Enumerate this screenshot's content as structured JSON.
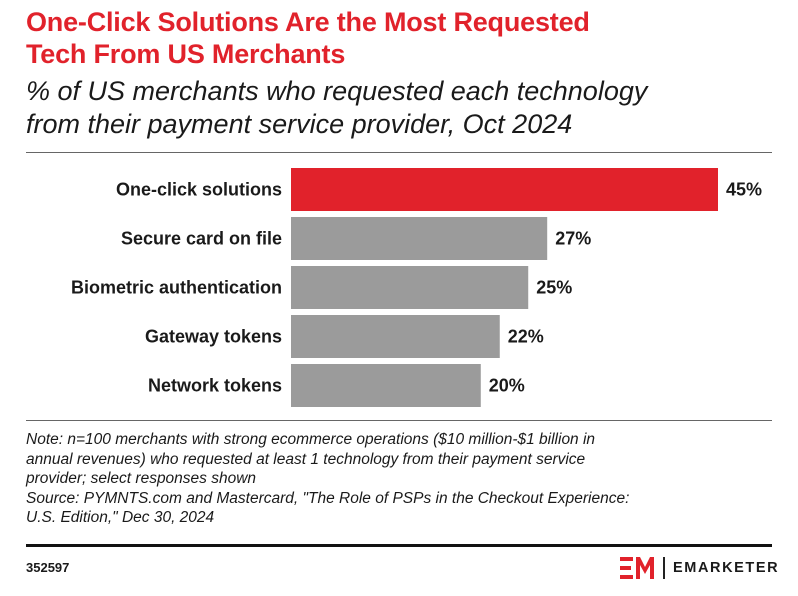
{
  "header": {
    "title_line1": "One-Click Solutions Are the Most Requested",
    "title_line2": "Tech From US Merchants",
    "subtitle_line1": "% of US merchants who requested each technology",
    "subtitle_line2": "from their payment service provider, Oct 2024"
  },
  "chart_data": {
    "type": "bar",
    "orientation": "horizontal",
    "categories": [
      "One-click solutions",
      "Secure card on file",
      "Biometric authentication",
      "Gateway tokens",
      "Network tokens"
    ],
    "values": [
      45,
      27,
      25,
      22,
      20
    ],
    "value_labels": [
      "45%",
      "27%",
      "25%",
      "22%",
      "20%"
    ],
    "highlight_index": 0,
    "colors": {
      "highlight": "#e1222b",
      "default": "#9b9b9b"
    },
    "xlim": [
      0,
      45
    ],
    "grid": false,
    "legend": "none"
  },
  "footer": {
    "note_lines": [
      "Note: n=100 merchants with strong ecommerce operations ($10 million-$1 billion in",
      "annual revenues) who requested at least 1 technology from their payment service",
      "provider; select responses shown"
    ],
    "source_lines": [
      "Source: PYMNTS.com and Mastercard, \"The Role of PSPs in the Checkout Experience:",
      "U.S. Edition,\" Dec 30, 2024"
    ],
    "chart_id": "352597",
    "brand_name": "EMARKETER",
    "brand_color": "#e1222b"
  }
}
